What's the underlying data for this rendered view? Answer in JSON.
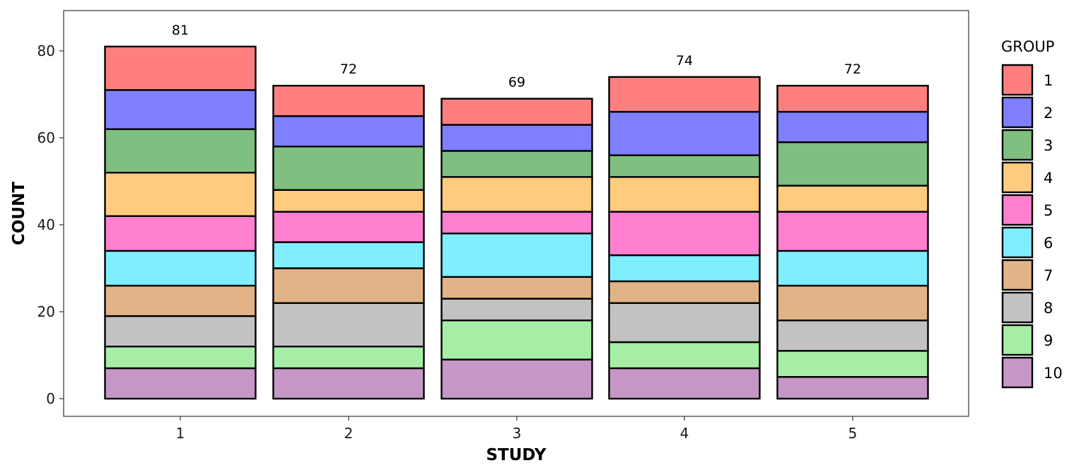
{
  "chart_data": {
    "type": "bar",
    "stacked": true,
    "xlabel": "STUDY",
    "ylabel": "COUNT",
    "categories": [
      "1",
      "2",
      "3",
      "4",
      "5"
    ],
    "totals": [
      81,
      72,
      69,
      74,
      72
    ],
    "ylim": [
      0,
      88
    ],
    "yticks": [
      0,
      20,
      40,
      60,
      80
    ],
    "grid": false,
    "legend": {
      "title": "GROUP",
      "position": "right"
    },
    "series": [
      {
        "name": "1",
        "color": "#FF7F7F",
        "values": [
          10,
          7,
          6,
          8,
          6
        ]
      },
      {
        "name": "2",
        "color": "#7F7FFF",
        "values": [
          9,
          7,
          6,
          10,
          7
        ]
      },
      {
        "name": "3",
        "color": "#7FBF7F",
        "values": [
          10,
          10,
          6,
          5,
          10
        ]
      },
      {
        "name": "4",
        "color": "#FFCC7F",
        "values": [
          10,
          5,
          8,
          8,
          6
        ]
      },
      {
        "name": "5",
        "color": "#FF7FD0",
        "values": [
          8,
          7,
          5,
          10,
          9
        ]
      },
      {
        "name": "6",
        "color": "#7FEEFF",
        "values": [
          8,
          6,
          10,
          6,
          8
        ]
      },
      {
        "name": "7",
        "color": "#E2B386",
        "values": [
          7,
          8,
          5,
          5,
          8
        ]
      },
      {
        "name": "8",
        "color": "#C2C2C2",
        "values": [
          7,
          10,
          5,
          9,
          7
        ]
      },
      {
        "name": "9",
        "color": "#A6EEA6",
        "values": [
          5,
          5,
          9,
          6,
          6
        ]
      },
      {
        "name": "10",
        "color": "#C697C6",
        "values": [
          7,
          7,
          9,
          7,
          5
        ]
      }
    ]
  }
}
